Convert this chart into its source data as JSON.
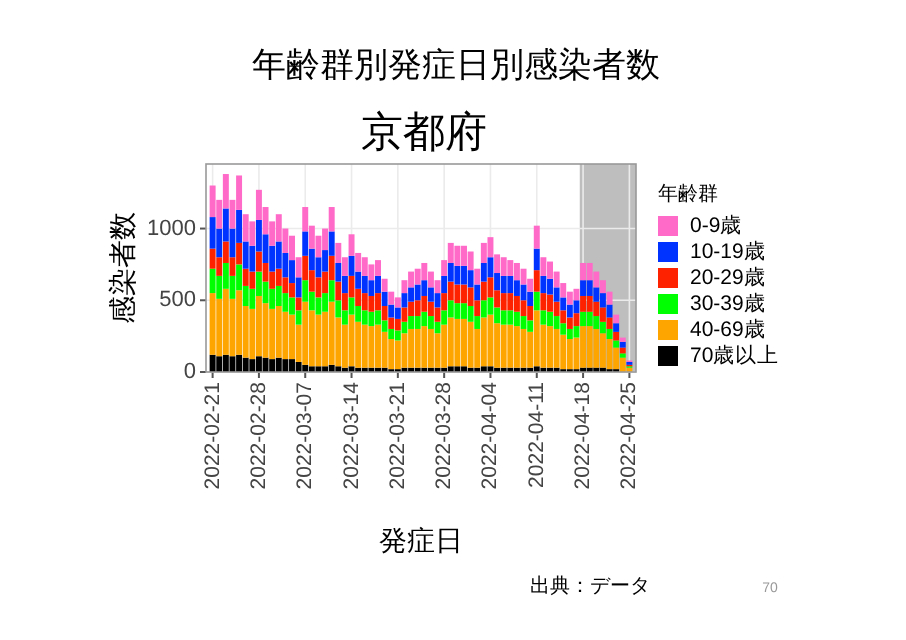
{
  "chart_data": {
    "type": "bar",
    "stacked": true,
    "title": "年齢群別発症日別感染者数",
    "subtitle": "京都府",
    "xlabel": "発症日",
    "ylabel": "感染者数",
    "legend_title": "年齢群",
    "x": [
      "2022-02-21",
      "2022-02-22",
      "2022-02-23",
      "2022-02-24",
      "2022-02-25",
      "2022-02-26",
      "2022-02-27",
      "2022-02-28",
      "2022-03-01",
      "2022-03-02",
      "2022-03-03",
      "2022-03-04",
      "2022-03-05",
      "2022-03-06",
      "2022-03-07",
      "2022-03-08",
      "2022-03-09",
      "2022-03-10",
      "2022-03-11",
      "2022-03-12",
      "2022-03-13",
      "2022-03-14",
      "2022-03-15",
      "2022-03-16",
      "2022-03-17",
      "2022-03-18",
      "2022-03-19",
      "2022-03-20",
      "2022-03-21",
      "2022-03-22",
      "2022-03-23",
      "2022-03-24",
      "2022-03-25",
      "2022-03-26",
      "2022-03-27",
      "2022-03-28",
      "2022-03-29",
      "2022-03-30",
      "2022-03-31",
      "2022-04-01",
      "2022-04-02",
      "2022-04-03",
      "2022-04-04",
      "2022-04-05",
      "2022-04-06",
      "2022-04-07",
      "2022-04-08",
      "2022-04-09",
      "2022-04-10",
      "2022-04-11",
      "2022-04-12",
      "2022-04-13",
      "2022-04-14",
      "2022-04-15",
      "2022-04-16",
      "2022-04-17",
      "2022-04-18",
      "2022-04-19",
      "2022-04-20",
      "2022-04-21",
      "2022-04-22",
      "2022-04-23",
      "2022-04-24",
      "2022-04-25"
    ],
    "series": [
      {
        "name": "70歳以上",
        "color": "#000000",
        "values": [
          120,
          110,
          120,
          110,
          120,
          100,
          90,
          110,
          100,
          90,
          100,
          90,
          90,
          70,
          50,
          40,
          40,
          40,
          50,
          40,
          30,
          40,
          30,
          30,
          30,
          30,
          30,
          20,
          20,
          30,
          30,
          30,
          30,
          30,
          30,
          30,
          40,
          40,
          40,
          30,
          30,
          40,
          40,
          30,
          30,
          30,
          30,
          30,
          30,
          40,
          30,
          30,
          30,
          20,
          20,
          20,
          30,
          30,
          30,
          30,
          20,
          20,
          null,
          0
        ]
      },
      {
        "name": "40-69歳",
        "color": "#ffa500",
        "values": [
          430,
          400,
          460,
          400,
          450,
          360,
          350,
          420,
          380,
          350,
          360,
          330,
          310,
          260,
          440,
          390,
          360,
          380,
          440,
          340,
          300,
          360,
          320,
          300,
          290,
          300,
          250,
          210,
          200,
          240,
          270,
          270,
          290,
          270,
          240,
          300,
          340,
          330,
          330,
          320,
          270,
          340,
          360,
          310,
          300,
          300,
          290,
          270,
          250,
          390,
          300,
          290,
          270,
          240,
          210,
          220,
          290,
          290,
          270,
          240,
          210,
          150,
          100,
          30
        ]
      },
      {
        "name": "30-39歳",
        "color": "#00ff00",
        "values": [
          170,
          160,
          180,
          160,
          180,
          140,
          140,
          170,
          150,
          140,
          140,
          130,
          120,
          100,
          150,
          130,
          120,
          130,
          150,
          120,
          100,
          120,
          110,
          100,
          100,
          100,
          80,
          70,
          70,
          80,
          90,
          90,
          100,
          90,
          80,
          100,
          120,
          110,
          110,
          110,
          90,
          120,
          120,
          110,
          100,
          100,
          100,
          90,
          80,
          130,
          100,
          100,
          90,
          80,
          70,
          80,
          100,
          100,
          90,
          80,
          70,
          50,
          30,
          10
        ]
      },
      {
        "name": "20-29歳",
        "color": "#ff2200",
        "values": [
          140,
          130,
          150,
          130,
          150,
          120,
          120,
          140,
          130,
          120,
          120,
          110,
          100,
          90,
          170,
          150,
          140,
          150,
          170,
          130,
          120,
          150,
          120,
          120,
          110,
          120,
          100,
          80,
          80,
          100,
          100,
          110,
          110,
          100,
          100,
          120,
          130,
          130,
          130,
          130,
          110,
          130,
          140,
          120,
          120,
          120,
          110,
          110,
          100,
          150,
          120,
          120,
          100,
          90,
          80,
          90,
          110,
          110,
          100,
          100,
          80,
          60,
          40,
          10
        ]
      },
      {
        "name": "10-19歳",
        "color": "#0033ff",
        "values": [
          220,
          200,
          230,
          200,
          230,
          190,
          180,
          220,
          200,
          180,
          190,
          170,
          160,
          140,
          170,
          150,
          140,
          150,
          170,
          130,
          120,
          140,
          120,
          120,
          110,
          120,
          100,
          90,
          80,
          100,
          100,
          110,
          110,
          100,
          100,
          120,
          130,
          130,
          130,
          120,
          110,
          130,
          140,
          120,
          120,
          120,
          110,
          110,
          100,
          150,
          120,
          110,
          100,
          90,
          90,
          90,
          110,
          110,
          100,
          100,
          90,
          60,
          40,
          20
        ]
      },
      {
        "name": "0-9歳",
        "color": "#ff69c8",
        "values": [
          220,
          200,
          240,
          200,
          240,
          190,
          170,
          210,
          190,
          170,
          190,
          170,
          170,
          140,
          170,
          160,
          150,
          150,
          170,
          140,
          130,
          150,
          130,
          130,
          110,
          110,
          90,
          90,
          70,
          90,
          110,
          110,
          120,
          110,
          90,
          110,
          140,
          140,
          140,
          130,
          110,
          140,
          140,
          130,
          130,
          110,
          120,
          110,
          90,
          160,
          130,
          120,
          110,
          100,
          90,
          80,
          120,
          120,
          110,
          90,
          90,
          60,
          30,
          10
        ]
      }
    ],
    "xlim": [
      "2022-02-20",
      "2022-04-26"
    ],
    "xticks": [
      "2022-02-21",
      "2022-02-28",
      "2022-03-07",
      "2022-03-14",
      "2022-03-21",
      "2022-03-28",
      "2022-04-04",
      "2022-04-11",
      "2022-04-18",
      "2022-04-25"
    ],
    "ylim": [
      0,
      1450
    ],
    "yticks": [
      0,
      500,
      1000
    ],
    "bands": [
      {
        "axis": "x",
        "from": "2022-04-17T12:00",
        "to": "2022-04-26",
        "color": "#bebebe"
      }
    ],
    "grid": true,
    "legend": "right",
    "annotations": [
      "出典：データ",
      "70"
    ]
  }
}
